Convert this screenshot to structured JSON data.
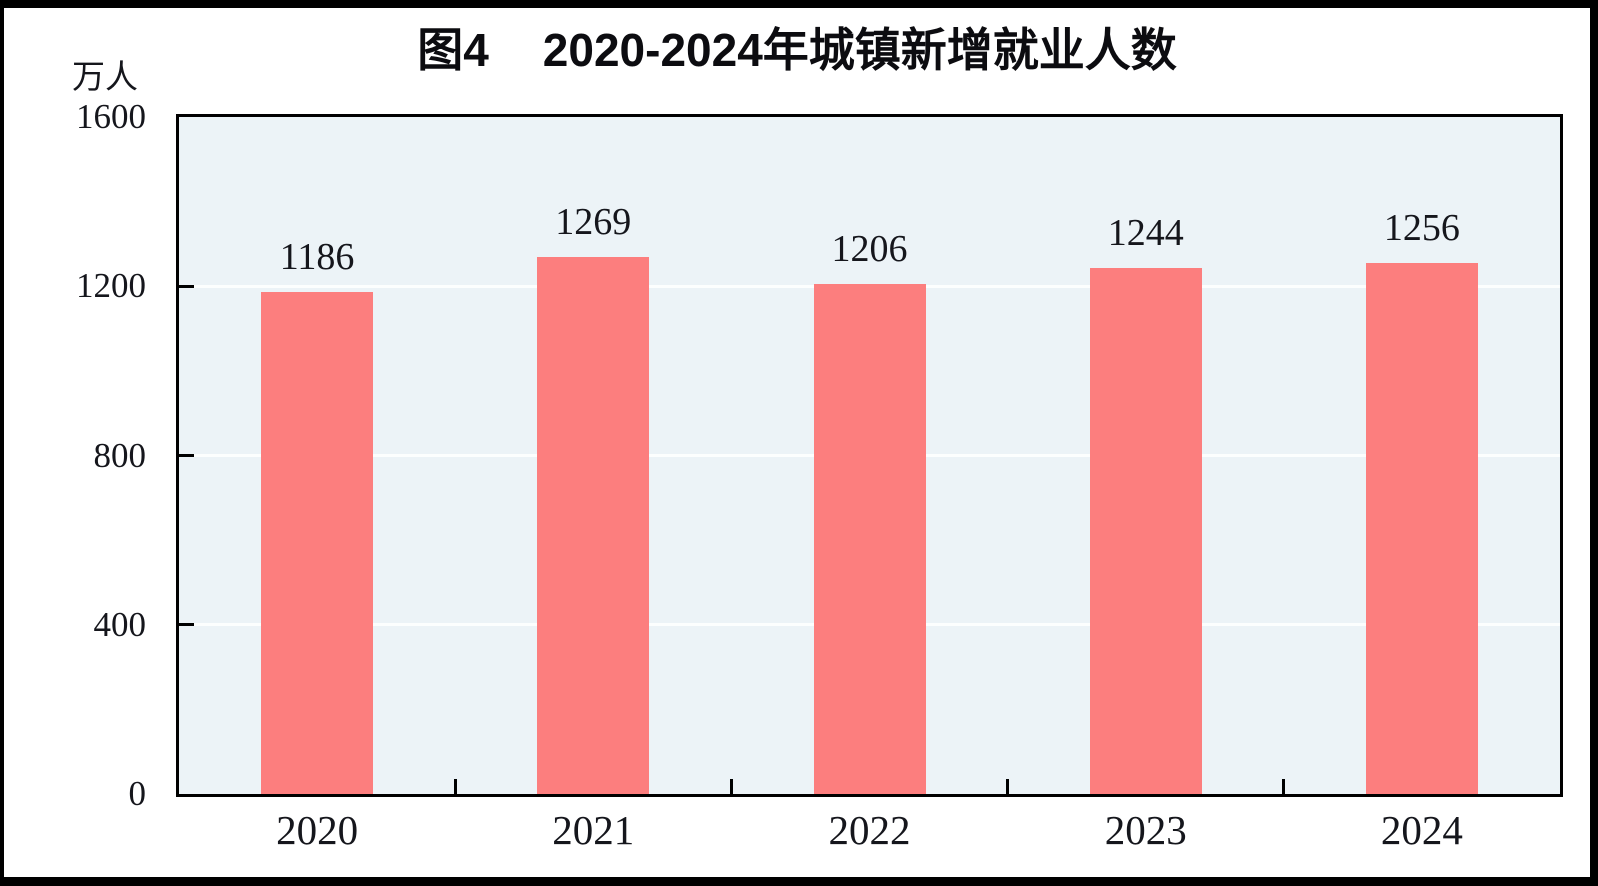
{
  "figure": {
    "title_prefix": "图4",
    "title_text": "2020-2024年城镇新增就业人数",
    "unit_label": "万人"
  },
  "chart_data": {
    "type": "bar",
    "title": "图4 2020-2024年城镇新增就业人数",
    "ylabel": "万人",
    "xlabel": "",
    "categories": [
      "2020",
      "2021",
      "2022",
      "2023",
      "2024"
    ],
    "values": [
      1186,
      1269,
      1206,
      1244,
      1256
    ],
    "ylim": [
      0,
      1600
    ],
    "yticks": [
      0,
      400,
      800,
      1200,
      1600
    ],
    "grid": true,
    "legend_position": "none",
    "value_labels_shown": true,
    "colors": {
      "bar": "#FC7E7E",
      "plot_background": "#ECF3F7",
      "gridline": "#FCFEFE",
      "axis": "#000000",
      "text": "#15161C",
      "outer_border": "#000000"
    }
  }
}
